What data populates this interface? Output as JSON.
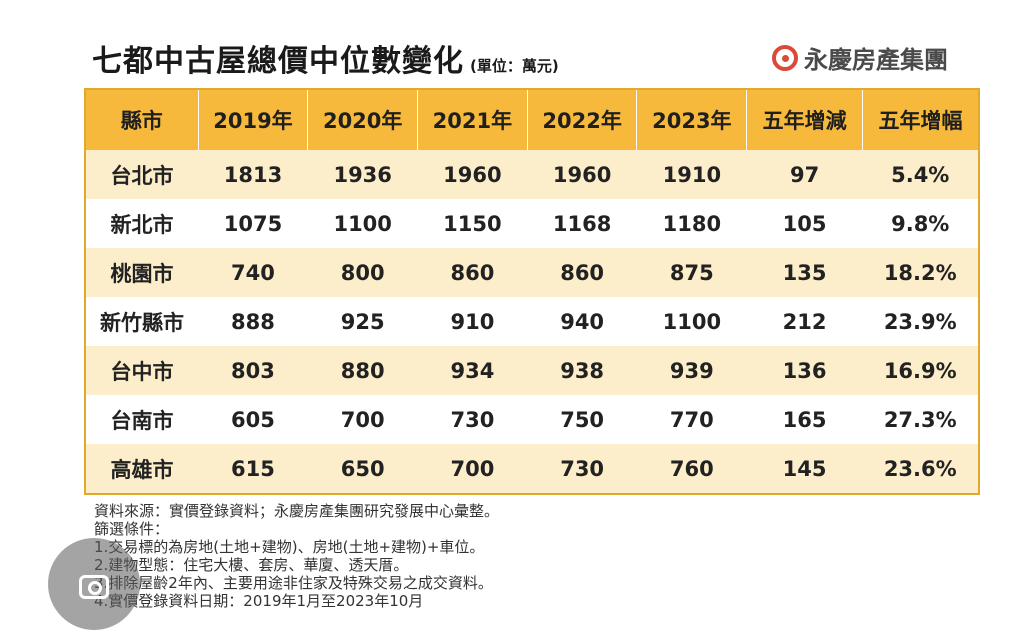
{
  "chart_data": {
    "type": "table",
    "title": "七都中古屋總價中位數變化",
    "unit": "(單位：萬元)",
    "columns": [
      "縣市",
      "2019年",
      "2020年",
      "2021年",
      "2022年",
      "2023年",
      "五年增減",
      "五年增幅"
    ],
    "rows": [
      [
        "台北市",
        "1813",
        "1936",
        "1960",
        "1960",
        "1910",
        "97",
        "5.4%"
      ],
      [
        "新北市",
        "1075",
        "1100",
        "1150",
        "1168",
        "1180",
        "105",
        "9.8%"
      ],
      [
        "桃園市",
        "740",
        "800",
        "860",
        "860",
        "875",
        "135",
        "18.2%"
      ],
      [
        "新竹縣市",
        "888",
        "925",
        "910",
        "940",
        "1100",
        "212",
        "23.9%"
      ],
      [
        "台中市",
        "803",
        "880",
        "934",
        "938",
        "939",
        "136",
        "16.9%"
      ],
      [
        "台南市",
        "605",
        "700",
        "730",
        "750",
        "770",
        "165",
        "27.3%"
      ],
      [
        "高雄市",
        "615",
        "650",
        "700",
        "730",
        "760",
        "145",
        "23.6%"
      ]
    ]
  },
  "brand": {
    "name": "永慶房產集團",
    "logo_color": "#d94a3a"
  },
  "notes": [
    "資料來源：實價登錄資料；永慶房產集團研究發展中心彙整。",
    "篩選條件：",
    "1.交易標的為房地(土地+建物)、房地(土地+建物)+車位。",
    "2.建物型態：住宅大樓、套房、華廈、透天厝。",
    "3.排除屋齡2年內、主要用途非住家及特殊交易之成交資料。",
    "4.實價登錄資料日期：2019年1月至2023年10月"
  ],
  "colors": {
    "header": "#f6b93b",
    "stripe": "#fdeecb",
    "border": "#e0a92e"
  },
  "overlay": {
    "icon": "lens-camera-icon"
  }
}
